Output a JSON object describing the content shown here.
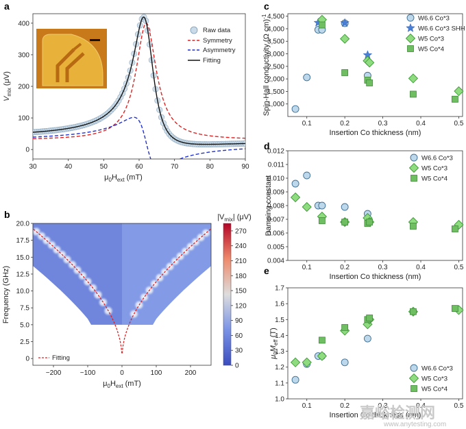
{
  "colors": {
    "blue_face": "#bcd8ea",
    "blue_edge": "#3d6e93",
    "green_face": "#8fdb7f",
    "green_edge": "#3c9a36",
    "sq_face": "#6fbe62",
    "sq_edge": "#3f8c38",
    "star": "#4a7fd6",
    "red": "#e02020",
    "dblue": "#1f2fd0",
    "heat_low": "#4a5cc8",
    "heat_mid": "#dcdcdc",
    "heat_high": "#c21f1f"
  },
  "watermark": {
    "text": "嘉峪检测网",
    "sub": "www.anytesting.com"
  },
  "chart_data": [
    {
      "panel": "a",
      "type": "line",
      "xlabel_main": "μ",
      "xlabel_sub": "0",
      "xlabel_main2": "H",
      "xlabel_sub2": "ext",
      "xlabel_unit": " (mT)",
      "ylabel_main": "V",
      "ylabel_sub": "mix",
      "ylabel_unit": " (μV)",
      "xlim": [
        30,
        90
      ],
      "ylim": [
        -30,
        430
      ],
      "xticks": [
        "30",
        "40",
        "50",
        "60",
        "70",
        "80",
        "90"
      ],
      "yticks": [
        "0",
        "100",
        "200",
        "300",
        "400"
      ],
      "legend": [
        "Raw data",
        "Symmetry",
        "Asymmetry",
        "Fitting"
      ],
      "lorentz": {
        "center": 62,
        "half_width": 3.5,
        "sym_amp": 370,
        "asym_amp": 80,
        "offset": 33
      },
      "inset": {
        "description_visible": false
      }
    },
    {
      "panel": "b",
      "type": "heatmap",
      "xlabel_main": "μ",
      "xlabel_sub": "0",
      "xlabel_main2": "H",
      "xlabel_sub2": "ext",
      "xlabel_unit": " (mT)",
      "ylabel": "Frequency (GHz)",
      "xlim": [
        -260,
        260
      ],
      "ylim": [
        -1,
        20
      ],
      "xticks": [
        "-200",
        "-100",
        "0",
        "100",
        "200"
      ],
      "yticks": [
        "0",
        "2.5",
        "5.0",
        "7.5",
        "10.0",
        "12.5",
        "15.0",
        "17.5",
        "20.0"
      ],
      "colorbar_label_main": "|V",
      "colorbar_label_sub": "mix",
      "colorbar_label_unit": "| (μV)",
      "colorbar_ticks": [
        "0",
        "30",
        "60",
        "90",
        "120",
        "150",
        "180",
        "210",
        "240",
        "270"
      ],
      "colorbar_range": [
        0,
        285
      ],
      "legend": [
        "Fitting"
      ],
      "kittel": {
        "Meff_T": 1.55
      }
    },
    {
      "panel": "c",
      "type": "scatter",
      "xlabel": "Insertion Co thickness (nm)",
      "ylabel": "Spin-Hall conductivity (Ω cm)",
      "ylabel_sup": "-1",
      "xlim": [
        0.05,
        0.51
      ],
      "ylim": [
        500,
        4600
      ],
      "xticks": [
        "0.1",
        "0.2",
        "0.3",
        "0.4",
        "0.5"
      ],
      "yticks": [
        "1,000",
        "1,500",
        "2,000",
        "2,500",
        "3,000",
        "3,500",
        "4,000",
        "4,500"
      ],
      "series": [
        {
          "name": "W6.6 Co*3",
          "marker": "circle",
          "x": [
            0.07,
            0.1,
            0.13,
            0.14,
            0.2,
            0.26
          ],
          "y": [
            800,
            2060,
            3960,
            3960,
            4220,
            2130
          ]
        },
        {
          "name": "W6.6 Co*3 SHH",
          "marker": "star",
          "x": [
            0.13,
            0.2,
            0.26
          ],
          "y": [
            4240,
            4230,
            2950
          ]
        },
        {
          "name": "W5 Co*3",
          "marker": "diamond",
          "x": [
            0.14,
            0.2,
            0.26,
            0.265,
            0.38,
            0.5
          ],
          "y": [
            4360,
            3600,
            2720,
            2650,
            2020,
            1510
          ]
        },
        {
          "name": "W5 Co*4",
          "marker": "square",
          "x": [
            0.14,
            0.2,
            0.26,
            0.265,
            0.38,
            0.49
          ],
          "y": [
            4150,
            2250,
            1950,
            1840,
            1390,
            1190
          ]
        }
      ]
    },
    {
      "panel": "d",
      "type": "scatter",
      "xlabel": "Insertion Co thickness (nm)",
      "ylabel": "Damping constant",
      "xlim": [
        0.05,
        0.51
      ],
      "ylim": [
        0.004,
        0.012
      ],
      "xticks": [
        "0.1",
        "0.2",
        "0.3",
        "0.4",
        "0.5"
      ],
      "yticks": [
        "0.004",
        "0.005",
        "0.006",
        "0.007",
        "0.008",
        "0.009",
        "0.010",
        "0.011",
        "0.012"
      ],
      "series": [
        {
          "name": "W6.6 Co*3",
          "marker": "circle",
          "x": [
            0.07,
            0.1,
            0.13,
            0.14,
            0.2,
            0.26
          ],
          "y": [
            0.0096,
            0.0102,
            0.008,
            0.008,
            0.0079,
            0.0074
          ]
        },
        {
          "name": "W5 Co*3",
          "marker": "diamond",
          "x": [
            0.07,
            0.1,
            0.14,
            0.2,
            0.26,
            0.265,
            0.38,
            0.5
          ],
          "y": [
            0.0086,
            0.0079,
            0.0072,
            0.0068,
            0.0071,
            0.0068,
            0.0068,
            0.0066
          ]
        },
        {
          "name": "W5 Co*4",
          "marker": "square",
          "x": [
            0.14,
            0.2,
            0.26,
            0.265,
            0.38,
            0.49
          ],
          "y": [
            0.0069,
            0.0068,
            0.0067,
            0.0068,
            0.0065,
            0.0063
          ]
        }
      ]
    },
    {
      "panel": "e",
      "type": "scatter",
      "xlabel": "Insertion Co thickness (nm)",
      "ylabel_main": "μ",
      "ylabel_sub": "0",
      "ylabel_main2": "M",
      "ylabel_sub2": "eff",
      "ylabel_unit": " (T)",
      "xlim": [
        0.05,
        0.51
      ],
      "ylim": [
        1.0,
        1.7
      ],
      "xticks": [
        "0.1",
        "0.2",
        "0.3",
        "0.4",
        "0.5"
      ],
      "yticks": [
        "1.0",
        "1.1",
        "1.2",
        "1.3",
        "1.4",
        "1.5",
        "1.6",
        "1.7"
      ],
      "series": [
        {
          "name": "W6.6 Co*3",
          "marker": "circle",
          "x": [
            0.07,
            0.1,
            0.13,
            0.14,
            0.2,
            0.26
          ],
          "y": [
            1.12,
            1.22,
            1.27,
            1.27,
            1.23,
            1.38
          ]
        },
        {
          "name": "W5 Co*3",
          "marker": "diamond",
          "x": [
            0.07,
            0.1,
            0.14,
            0.2,
            0.26,
            0.265,
            0.38,
            0.5
          ],
          "y": [
            1.23,
            1.23,
            1.27,
            1.43,
            1.47,
            1.5,
            1.55,
            1.56
          ]
        },
        {
          "name": "W5 Co*4",
          "marker": "square",
          "x": [
            0.14,
            0.2,
            0.26,
            0.265,
            0.38,
            0.49
          ],
          "y": [
            1.37,
            1.45,
            1.5,
            1.51,
            1.55,
            1.57
          ]
        }
      ]
    }
  ]
}
